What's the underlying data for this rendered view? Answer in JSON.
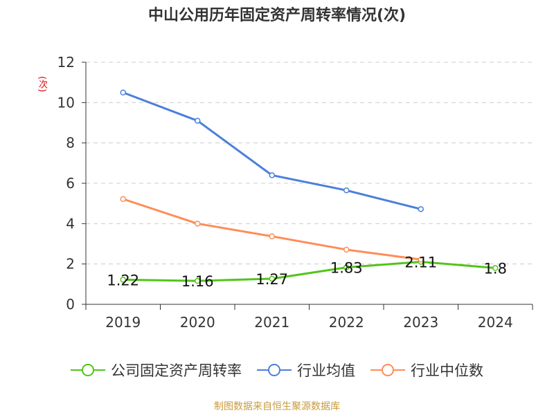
{
  "colors": {
    "green": "#52c41a",
    "blue": "#4a7fdc",
    "orange": "#ff8c55",
    "title": "#333333",
    "ylabel": "#e10000",
    "source": "#c89b3c"
  },
  "chart_data": {
    "type": "line",
    "title": "中山公用历年固定资产周转率情况(次)",
    "ylabel": "(次)",
    "xlabel": "",
    "ylim": [
      0,
      12
    ],
    "yticks": [
      0,
      2,
      4,
      6,
      8,
      10,
      12
    ],
    "categories": [
      "2019",
      "2020",
      "2021",
      "2022",
      "2023",
      "2024"
    ],
    "grid": true,
    "legend_position": "bottom",
    "series": [
      {
        "name": "公司固定资产周转率",
        "color": "#52c41a",
        "values": [
          1.22,
          1.16,
          1.27,
          1.83,
          2.11,
          1.8
        ],
        "labels": [
          "1.22",
          "1.16",
          "1.27",
          "1.83",
          "2.11",
          "1.8"
        ]
      },
      {
        "name": "行业均值",
        "color": "#4a7fdc",
        "values": [
          10.5,
          9.1,
          6.4,
          5.65,
          4.72,
          null
        ]
      },
      {
        "name": "行业中位数",
        "color": "#ff8c55",
        "values": [
          5.22,
          4.0,
          3.37,
          2.71,
          2.22,
          null
        ]
      }
    ]
  },
  "source": "制图数据来自恒生聚源数据库"
}
